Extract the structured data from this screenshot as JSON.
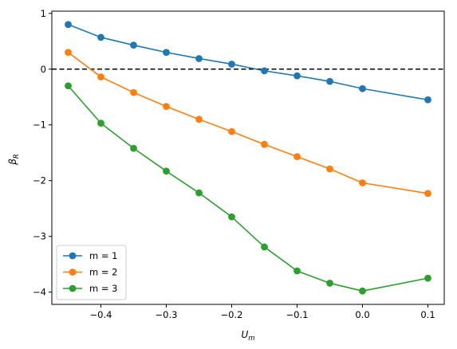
{
  "chart_data": {
    "type": "line",
    "xlabel": {
      "base": "U",
      "sub": "m"
    },
    "ylabel": {
      "base": "β",
      "sub": "R"
    },
    "xlim": [
      -0.475,
      0.125
    ],
    "ylim": [
      -4.22,
      1.04
    ],
    "xticks": [
      -0.4,
      -0.3,
      -0.2,
      -0.1,
      0.0,
      0.1
    ],
    "xtick_labels": [
      "−0.4",
      "−0.3",
      "−0.2",
      "−0.1",
      "0.0",
      "0.1"
    ],
    "yticks": [
      1,
      0,
      -1,
      -2,
      -3,
      -4
    ],
    "ytick_labels": [
      "1",
      "0",
      "−1",
      "−2",
      "−3",
      "−4"
    ],
    "reference_line": {
      "y": 0,
      "style": "dashed",
      "color": "#000000"
    },
    "x": [
      -0.45,
      -0.4,
      -0.35,
      -0.3,
      -0.25,
      -0.2,
      -0.15,
      -0.1,
      -0.05,
      0.0,
      0.1
    ],
    "series": [
      {
        "name": "m = 1",
        "color": "#1f77b4",
        "values": [
          0.8,
          0.57,
          0.43,
          0.3,
          0.19,
          0.09,
          -0.03,
          -0.12,
          -0.22,
          -0.35,
          -0.55
        ]
      },
      {
        "name": "m = 2",
        "color": "#ff7f0e",
        "values": [
          0.3,
          -0.14,
          -0.42,
          -0.67,
          -0.9,
          -1.12,
          -1.35,
          -1.57,
          -1.79,
          -2.04,
          -2.23
        ]
      },
      {
        "name": "m = 3",
        "color": "#2ca02c",
        "values": [
          -0.3,
          -0.97,
          -1.42,
          -1.83,
          -2.22,
          -2.65,
          -3.19,
          -3.62,
          -3.84,
          -3.98,
          -3.75
        ]
      }
    ],
    "legend": {
      "placement": "lower-left"
    }
  }
}
